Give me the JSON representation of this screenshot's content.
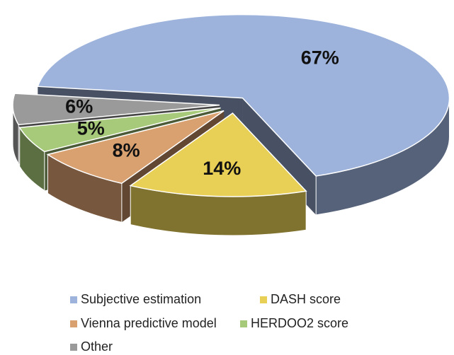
{
  "chart_data": {
    "type": "pie3d",
    "categories": [
      "Subjective estimation",
      "DASH score",
      "Vienna predictive model",
      "HERDOO2 score",
      "Other"
    ],
    "values": [
      67,
      14,
      8,
      5,
      6
    ],
    "value_labels": [
      "67%",
      "14%",
      "8%",
      "5%",
      "6%"
    ],
    "colors": [
      "#9db3dc",
      "#e8cf55",
      "#d9a070",
      "#a6c97a",
      "#9a9a9a"
    ]
  }
}
